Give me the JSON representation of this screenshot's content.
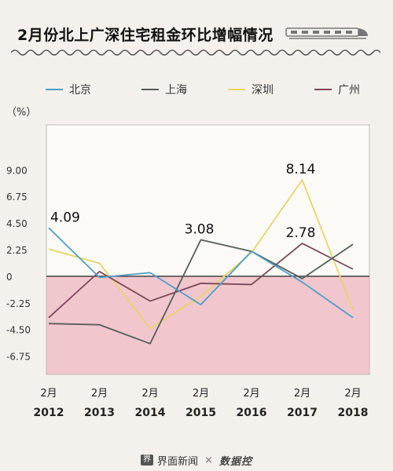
{
  "title": "2月份北上广深住宅租金环比增幅情况",
  "unit_label": "（%）",
  "colors": {
    "beijing": "#4e9ec9",
    "shanghai": "#555f5a",
    "shenzhen": "#e8d56a",
    "guangzhou": "#7b4a58",
    "negative_band": "#f2c6cd",
    "plot_bg": "#fbfaf7",
    "border": "#bfbcb5"
  },
  "chart_data": {
    "type": "line",
    "x": [
      "2012",
      "2013",
      "2014",
      "2015",
      "2016",
      "2017",
      "2018"
    ],
    "x_tick_month": "2月",
    "series": [
      {
        "name": "北京",
        "values": [
          4.09,
          -0.1,
          0.3,
          -2.4,
          2.1,
          -0.5,
          -3.5
        ]
      },
      {
        "name": "上海",
        "values": [
          -4.0,
          -4.1,
          -5.7,
          3.08,
          2.1,
          -0.2,
          2.7
        ]
      },
      {
        "name": "深圳",
        "values": [
          2.3,
          1.1,
          -4.4,
          -1.7,
          2.0,
          8.14,
          -2.8
        ]
      },
      {
        "name": "广州",
        "values": [
          -3.5,
          0.4,
          -2.1,
          -0.6,
          -0.7,
          2.78,
          0.6
        ]
      }
    ],
    "annotations": [
      {
        "text": "4.09",
        "x": "2012",
        "y": 4.09
      },
      {
        "text": "3.08",
        "x": "2015",
        "y": 3.08
      },
      {
        "text": "8.14",
        "x": "2017",
        "y": 8.14
      },
      {
        "text": "2.78",
        "x": "2017",
        "y": 2.78
      }
    ],
    "y_ticks": [
      9.0,
      6.75,
      4.5,
      2.25,
      0,
      -2.25,
      -4.5,
      -6.75
    ],
    "y_tick_labels": [
      "9.00",
      "6.75",
      "4.50",
      "2.25",
      "0",
      "-2.25",
      "-4.50",
      "-6.75"
    ],
    "ylim": [
      -8.3,
      12.8
    ],
    "legend_position": "top",
    "grid": false
  },
  "footer": {
    "logo_glyph": "界",
    "brand1": "界面新闻",
    "separator": "×",
    "brand2": "数据控"
  }
}
